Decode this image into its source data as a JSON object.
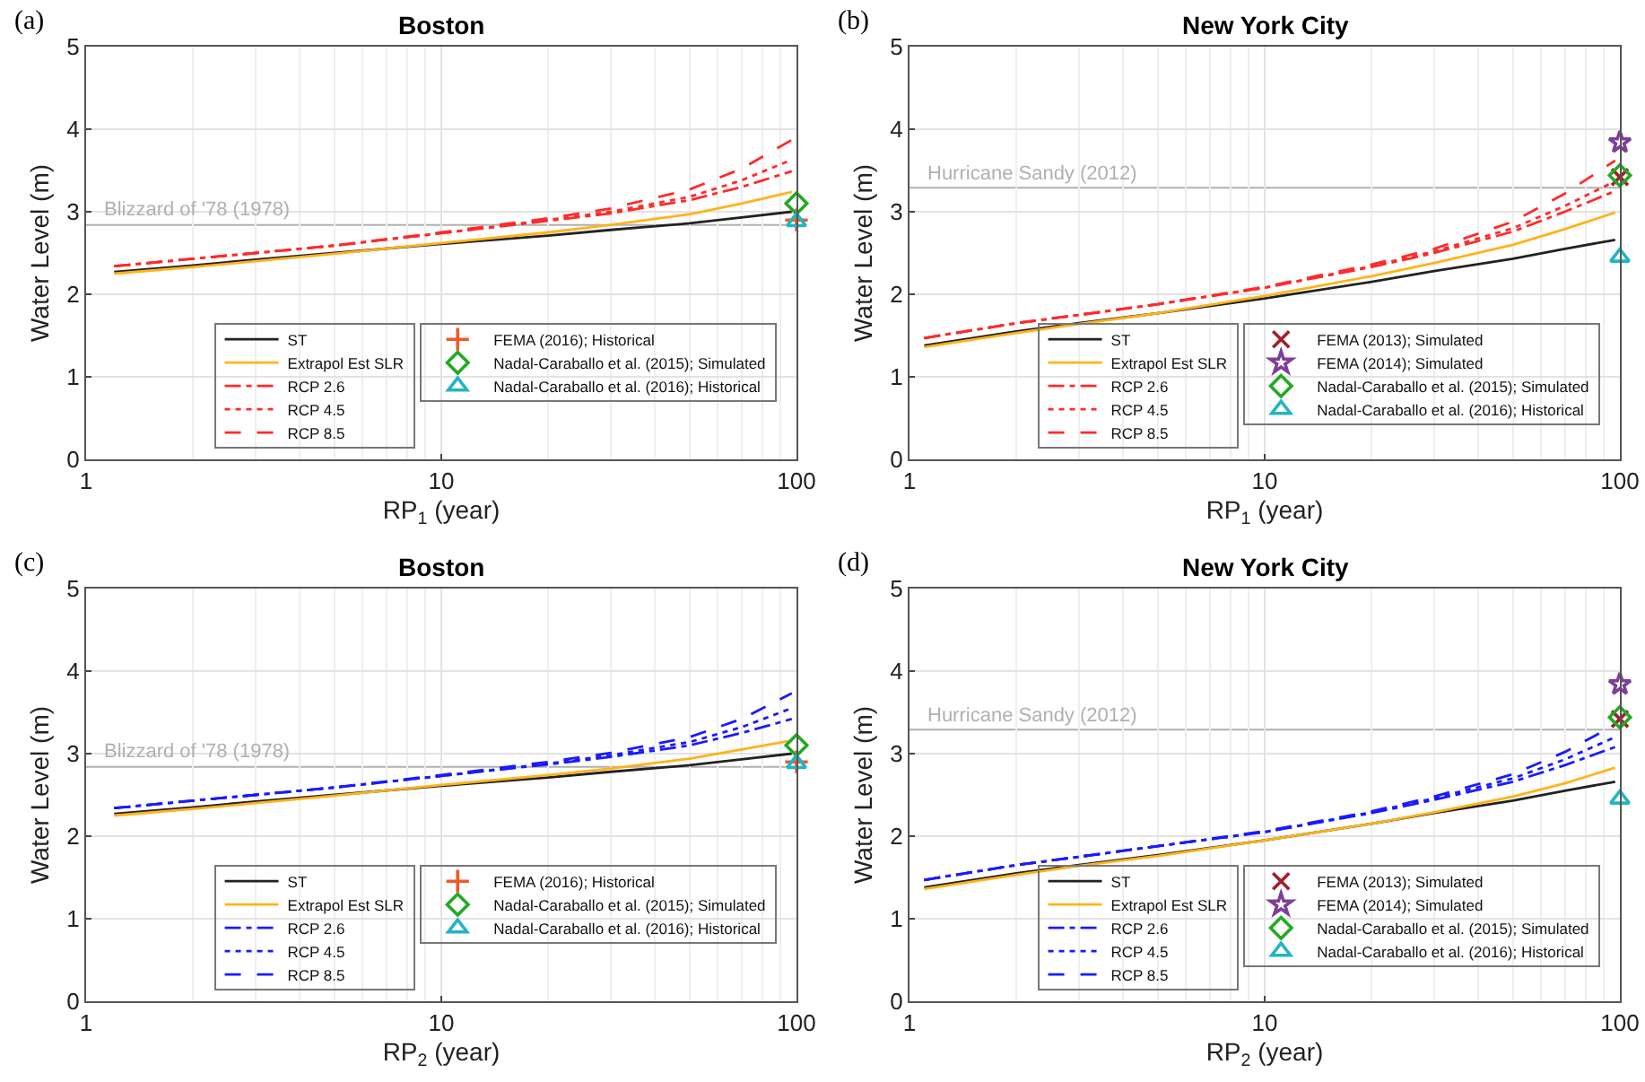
{
  "chart_data": [
    {
      "type": "line",
      "title": "Boston",
      "xlabel": "RP$_{1}$ (year)",
      "ylabel": "Water Level (m)",
      "annotations": [
        "(a)"
      ],
      "log": "x",
      "xlim": [
        1,
        100
      ],
      "ylim": [
        0,
        5
      ],
      "xticks": [
        1,
        10,
        100
      ],
      "yticks": [
        0,
        1,
        2,
        3,
        4,
        5
      ],
      "grid": true,
      "legend": "bottom right",
      "ref_lines": [
        {
          "axis": "y",
          "value": 2.84,
          "label": "Blizzard of '78 (1978)",
          "color": "#b0b0b0"
        }
      ],
      "series": [
        {
          "name": "ST",
          "type": "line",
          "color": "#222222",
          "line_style": "solid",
          "x": [
            1.2,
            2,
            3,
            5,
            10,
            20,
            30,
            50,
            70,
            97
          ],
          "values": [
            2.27,
            2.35,
            2.42,
            2.5,
            2.61,
            2.71,
            2.78,
            2.86,
            2.93,
            3.0
          ]
        },
        {
          "name": "Extrapol Est SLR",
          "type": "line",
          "color": "#ffb31a",
          "line_style": "solid",
          "x": [
            1.2,
            2,
            3,
            5,
            10,
            20,
            30,
            50,
            70,
            97
          ],
          "values": [
            2.25,
            2.33,
            2.4,
            2.49,
            2.62,
            2.75,
            2.84,
            2.97,
            3.1,
            3.24
          ]
        },
        {
          "name": "RCP 2.6",
          "type": "line",
          "color": "#ff2a2a",
          "line_style": "dashdot",
          "x": [
            1.2,
            2,
            3,
            5,
            10,
            20,
            30,
            50,
            70,
            97
          ],
          "values": [
            2.34,
            2.43,
            2.5,
            2.59,
            2.74,
            2.89,
            2.98,
            3.14,
            3.3,
            3.49
          ]
        },
        {
          "name": "RCP 4.5",
          "type": "line",
          "color": "#ff2a2a",
          "line_style": "dotted",
          "x": [
            1.2,
            2,
            3,
            5,
            10,
            20,
            30,
            50,
            70,
            97
          ],
          "values": [
            2.34,
            2.43,
            2.5,
            2.59,
            2.74,
            2.9,
            3.0,
            3.18,
            3.38,
            3.63
          ]
        },
        {
          "name": "RCP 8.5",
          "type": "line",
          "color": "#ff2a2a",
          "line_style": "dashed",
          "x": [
            1.2,
            2,
            3,
            5,
            10,
            20,
            30,
            50,
            70,
            97
          ],
          "values": [
            2.34,
            2.43,
            2.5,
            2.59,
            2.75,
            2.92,
            3.04,
            3.27,
            3.52,
            3.87
          ]
        },
        {
          "name": "FEMA (2016); Historical",
          "type": "scatter",
          "marker": "cross",
          "color": "#f05a28",
          "x": [
            100
          ],
          "values": [
            2.9
          ]
        },
        {
          "name": "Nadal-Caraballo et al. (2015); Simulated",
          "type": "scatter",
          "marker": "diamond",
          "color": "#22aa22",
          "x": [
            100
          ],
          "values": [
            3.1
          ]
        },
        {
          "name": "Nadal-Caraballo et al. (2016); Historical",
          "type": "scatter",
          "marker": "triangle",
          "color": "#22b5c2",
          "x": [
            100
          ],
          "values": [
            2.88
          ]
        }
      ]
    },
    {
      "type": "line",
      "title": "New York City",
      "xlabel": "RP$_{1}$ (year)",
      "ylabel": "Water Level (m)",
      "annotations": [
        "(b)"
      ],
      "log": "x",
      "xlim": [
        1,
        100
      ],
      "ylim": [
        0,
        5
      ],
      "xticks": [
        1,
        10,
        100
      ],
      "yticks": [
        0,
        1,
        2,
        3,
        4,
        5
      ],
      "grid": true,
      "legend": "bottom right",
      "ref_lines": [
        {
          "axis": "y",
          "value": 3.29,
          "label": "Hurricane Sandy (2012)",
          "color": "#b0b0b0"
        }
      ],
      "series": [
        {
          "name": "ST",
          "type": "line",
          "color": "#222222",
          "line_style": "solid",
          "x": [
            1.1,
            2,
            3,
            5,
            10,
            20,
            30,
            50,
            70,
            97
          ],
          "values": [
            1.38,
            1.55,
            1.65,
            1.77,
            1.95,
            2.15,
            2.28,
            2.43,
            2.55,
            2.66
          ]
        },
        {
          "name": "Extrapol Est SLR",
          "type": "line",
          "color": "#ffb31a",
          "line_style": "solid",
          "x": [
            1.1,
            2,
            3,
            5,
            10,
            20,
            30,
            50,
            70,
            97
          ],
          "values": [
            1.36,
            1.53,
            1.64,
            1.77,
            1.98,
            2.22,
            2.38,
            2.6,
            2.79,
            2.99
          ]
        },
        {
          "name": "RCP 2.6",
          "type": "line",
          "color": "#ff2a2a",
          "line_style": "dashdot",
          "x": [
            1.1,
            2,
            3,
            5,
            10,
            20,
            30,
            50,
            70,
            97
          ],
          "values": [
            1.47,
            1.65,
            1.75,
            1.88,
            2.08,
            2.33,
            2.5,
            2.76,
            3.0,
            3.25
          ]
        },
        {
          "name": "RCP 4.5",
          "type": "line",
          "color": "#ff2a2a",
          "line_style": "dotted",
          "x": [
            1.1,
            2,
            3,
            5,
            10,
            20,
            30,
            50,
            70,
            97
          ],
          "values": [
            1.47,
            1.65,
            1.75,
            1.88,
            2.08,
            2.34,
            2.52,
            2.8,
            3.07,
            3.37
          ]
        },
        {
          "name": "RCP 8.5",
          "type": "line",
          "color": "#ff2a2a",
          "line_style": "dashed",
          "x": [
            1.1,
            2,
            3,
            5,
            10,
            20,
            30,
            50,
            70,
            97
          ],
          "values": [
            1.47,
            1.65,
            1.75,
            1.88,
            2.09,
            2.36,
            2.55,
            2.88,
            3.22,
            3.62
          ]
        },
        {
          "name": "FEMA (2013); Simulated",
          "type": "scatter",
          "marker": "x",
          "color": "#a0202a",
          "x": [
            100
          ],
          "values": [
            3.42
          ]
        },
        {
          "name": "FEMA (2014); Simulated",
          "type": "scatter",
          "marker": "star",
          "color": "#7f3f98",
          "x": [
            100
          ],
          "values": [
            3.84
          ]
        },
        {
          "name": "Nadal-Caraballo et al. (2015); Simulated",
          "type": "scatter",
          "marker": "diamond",
          "color": "#22aa22",
          "x": [
            100
          ],
          "values": [
            3.44
          ]
        },
        {
          "name": "Nadal-Caraballo et al. (2016); Historical",
          "type": "scatter",
          "marker": "triangle",
          "color": "#22b5c2",
          "x": [
            100
          ],
          "values": [
            2.45
          ]
        }
      ]
    },
    {
      "type": "line",
      "title": "Boston",
      "xlabel": "RP$_{2}$ (year)",
      "ylabel": "Water Level (m)",
      "annotations": [
        "(c)"
      ],
      "log": "x",
      "xlim": [
        1,
        100
      ],
      "ylim": [
        0,
        5
      ],
      "xticks": [
        1,
        10,
        100
      ],
      "yticks": [
        0,
        1,
        2,
        3,
        4,
        5
      ],
      "grid": true,
      "legend": "bottom right",
      "ref_lines": [
        {
          "axis": "y",
          "value": 2.84,
          "label": "Blizzard of '78 (1978)",
          "color": "#b0b0b0"
        }
      ],
      "series": [
        {
          "name": "ST",
          "type": "line",
          "color": "#222222",
          "line_style": "solid",
          "x": [
            1.2,
            2,
            3,
            5,
            10,
            20,
            30,
            50,
            70,
            97
          ],
          "values": [
            2.27,
            2.35,
            2.42,
            2.5,
            2.61,
            2.71,
            2.78,
            2.86,
            2.93,
            3.0
          ]
        },
        {
          "name": "Extrapol Est SLR",
          "type": "line",
          "color": "#ffb31a",
          "line_style": "solid",
          "x": [
            1.2,
            2,
            3,
            5,
            10,
            20,
            30,
            50,
            70,
            97
          ],
          "values": [
            2.25,
            2.33,
            2.4,
            2.49,
            2.62,
            2.74,
            2.82,
            2.94,
            3.05,
            3.16
          ]
        },
        {
          "name": "RCP 2.6",
          "type": "line",
          "color": "#1a1aff",
          "line_style": "dashdot",
          "x": [
            1.2,
            2,
            3,
            5,
            10,
            20,
            30,
            50,
            70,
            97
          ],
          "values": [
            2.34,
            2.43,
            2.5,
            2.59,
            2.73,
            2.87,
            2.96,
            3.1,
            3.25,
            3.42
          ]
        },
        {
          "name": "RCP 4.5",
          "type": "line",
          "color": "#1a1aff",
          "line_style": "dotted",
          "x": [
            1.2,
            2,
            3,
            5,
            10,
            20,
            30,
            50,
            70,
            97
          ],
          "values": [
            2.34,
            2.43,
            2.5,
            2.59,
            2.73,
            2.88,
            2.98,
            3.14,
            3.32,
            3.55
          ]
        },
        {
          "name": "RCP 8.5",
          "type": "line",
          "color": "#1a1aff",
          "line_style": "dashed",
          "x": [
            1.2,
            2,
            3,
            5,
            10,
            20,
            30,
            50,
            70,
            97
          ],
          "values": [
            2.34,
            2.43,
            2.5,
            2.59,
            2.74,
            2.9,
            3.01,
            3.2,
            3.42,
            3.73
          ]
        },
        {
          "name": "FEMA (2016); Historical",
          "type": "scatter",
          "marker": "cross",
          "color": "#f05a28",
          "x": [
            100
          ],
          "values": [
            2.9
          ]
        },
        {
          "name": "Nadal-Caraballo et al. (2015); Simulated",
          "type": "scatter",
          "marker": "diamond",
          "color": "#22aa22",
          "x": [
            100
          ],
          "values": [
            3.1
          ]
        },
        {
          "name": "Nadal-Caraballo et al. (2016); Historical",
          "type": "scatter",
          "marker": "triangle",
          "color": "#22b5c2",
          "x": [
            100
          ],
          "values": [
            2.88
          ]
        }
      ]
    },
    {
      "type": "line",
      "title": "New York City",
      "xlabel": "RP$_{2}$ (year)",
      "ylabel": "Water Level (m)",
      "annotations": [
        "(d)"
      ],
      "log": "x",
      "xlim": [
        1,
        100
      ],
      "ylim": [
        0,
        5
      ],
      "xticks": [
        1,
        10,
        100
      ],
      "yticks": [
        0,
        1,
        2,
        3,
        4,
        5
      ],
      "grid": true,
      "legend": "bottom right",
      "ref_lines": [
        {
          "axis": "y",
          "value": 3.29,
          "label": "Hurricane Sandy (2012)",
          "color": "#b0b0b0"
        }
      ],
      "series": [
        {
          "name": "ST",
          "type": "line",
          "color": "#222222",
          "line_style": "solid",
          "x": [
            1.1,
            2,
            3,
            5,
            10,
            20,
            30,
            50,
            70,
            97
          ],
          "values": [
            1.38,
            1.55,
            1.65,
            1.77,
            1.95,
            2.15,
            2.28,
            2.43,
            2.55,
            2.66
          ]
        },
        {
          "name": "Extrapol Est SLR",
          "type": "line",
          "color": "#ffb31a",
          "line_style": "solid",
          "x": [
            1.1,
            2,
            3,
            5,
            10,
            20,
            30,
            50,
            70,
            97
          ],
          "values": [
            1.36,
            1.53,
            1.64,
            1.76,
            1.95,
            2.15,
            2.29,
            2.48,
            2.64,
            2.83
          ]
        },
        {
          "name": "RCP 2.6",
          "type": "line",
          "color": "#1a1aff",
          "line_style": "dashdot",
          "x": [
            1.1,
            2,
            3,
            5,
            10,
            20,
            30,
            50,
            70,
            97
          ],
          "values": [
            1.47,
            1.65,
            1.75,
            1.88,
            2.05,
            2.28,
            2.44,
            2.66,
            2.86,
            3.08
          ]
        },
        {
          "name": "RCP 4.5",
          "type": "line",
          "color": "#1a1aff",
          "line_style": "dotted",
          "x": [
            1.1,
            2,
            3,
            5,
            10,
            20,
            30,
            50,
            70,
            97
          ],
          "values": [
            1.47,
            1.65,
            1.75,
            1.88,
            2.05,
            2.29,
            2.46,
            2.7,
            2.93,
            3.2
          ]
        },
        {
          "name": "RCP 8.5",
          "type": "line",
          "color": "#1a1aff",
          "line_style": "dashed",
          "x": [
            1.1,
            2,
            3,
            5,
            10,
            20,
            30,
            50,
            70,
            97
          ],
          "values": [
            1.47,
            1.65,
            1.75,
            1.88,
            2.06,
            2.3,
            2.48,
            2.75,
            3.02,
            3.35
          ]
        },
        {
          "name": "FEMA (2013); Simulated",
          "type": "scatter",
          "marker": "x",
          "color": "#a0202a",
          "x": [
            100
          ],
          "values": [
            3.42
          ]
        },
        {
          "name": "FEMA (2014); Simulated",
          "type": "scatter",
          "marker": "star",
          "color": "#7f3f98",
          "x": [
            100
          ],
          "values": [
            3.84
          ]
        },
        {
          "name": "Nadal-Caraballo et al. (2015); Simulated",
          "type": "scatter",
          "marker": "diamond",
          "color": "#22aa22",
          "x": [
            100
          ],
          "values": [
            3.44
          ]
        },
        {
          "name": "Nadal-Caraballo et al. (2016); Historical",
          "type": "scatter",
          "marker": "triangle",
          "color": "#22b5c2",
          "x": [
            100
          ],
          "values": [
            2.45
          ]
        }
      ]
    }
  ]
}
